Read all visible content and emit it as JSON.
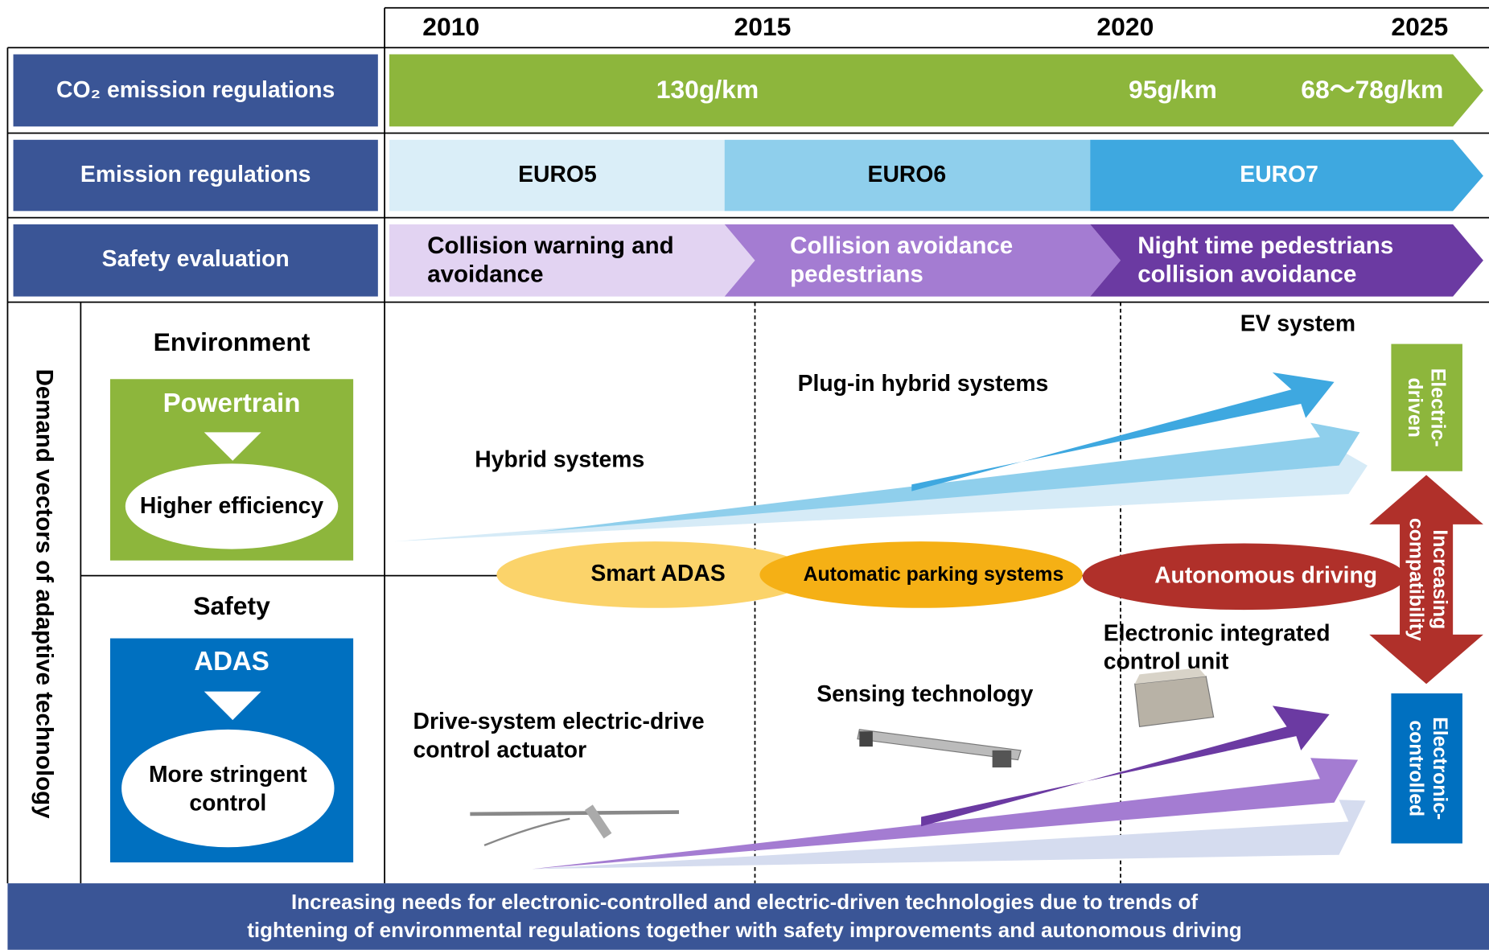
{
  "years": [
    "2010",
    "2015",
    "2020",
    "2025"
  ],
  "rows": [
    {
      "label": "CO₂ emission regulations",
      "segments": [
        "130g/km",
        "95g/km",
        "68～78g/km"
      ]
    },
    {
      "label": "Emission regulations",
      "segments": [
        "EURO5",
        "EURO6",
        "EURO7"
      ]
    },
    {
      "label": "Safety evaluation",
      "segments": [
        [
          "Collision warning and",
          "avoidance"
        ],
        [
          "Collision avoidance",
          "pedestrians"
        ],
        [
          "Night time pedestrians",
          "collision avoidance"
        ]
      ]
    }
  ],
  "side_title": "Demand vectors of adaptive technology",
  "environment": {
    "title": "Environment",
    "box": "Powertrain",
    "goal": "Higher efficiency"
  },
  "safety": {
    "title": "Safety",
    "box": "ADAS",
    "goal": [
      "More stringent",
      "control"
    ]
  },
  "labels": {
    "hybrid": "Hybrid systems",
    "plugin": "Plug-in hybrid systems",
    "ev": "EV system",
    "smart_adas": "Smart ADAS",
    "parking": "Automatic parking systems",
    "autonomous": "Autonomous driving",
    "ecu": [
      "Electronic integrated",
      "control unit"
    ],
    "sensing": "Sensing technology",
    "actuator": [
      "Drive-system electric-drive",
      "control actuator"
    ]
  },
  "right": {
    "electric": [
      "Electric-",
      "driven"
    ],
    "compat": [
      "Increasing",
      "compatibility"
    ],
    "electronic": [
      "Electronic-",
      "controlled"
    ]
  },
  "footer": [
    "Increasing needs for electronic-controlled and electric-driven technologies due to trends of",
    "tightening of environmental regulations together with safety improvements and autonomous driving"
  ]
}
